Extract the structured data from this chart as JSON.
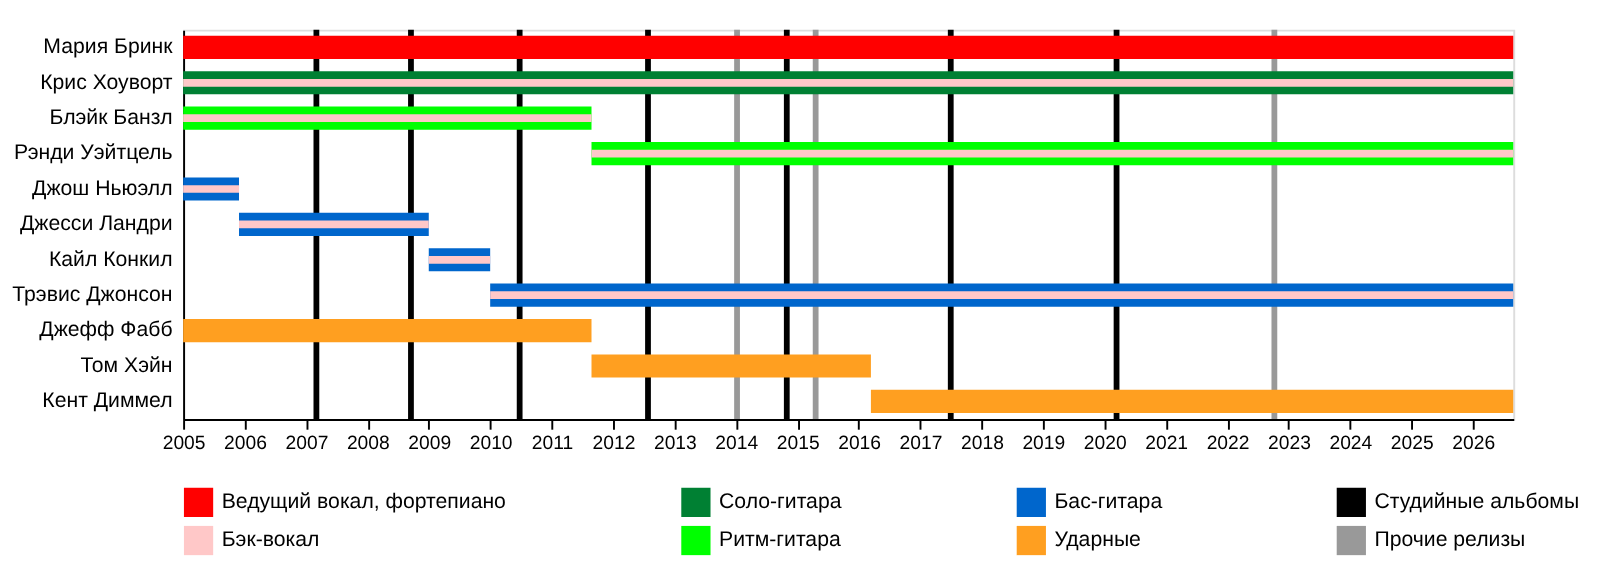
{
  "chart_data": {
    "type": "bar",
    "orientation": "horizontal",
    "categories": [
      "Мария Бринк",
      "Крис Хоуворт",
      "Блэйк Банзл",
      "Рэнди Уэйтцель",
      "Джош Ньюэлл",
      "Джесси Ландри",
      "Кайл Конкил",
      "Трэвис Джонсон",
      "Джефф Фабб",
      "Том Хэйн",
      "Кент Диммел"
    ],
    "series": [
      {
        "name": "Ведущий вокал, фортепиано",
        "color": "#ff0000",
        "base": [
          2005,
          null,
          null,
          null,
          null,
          null,
          null,
          null,
          null,
          null,
          null
        ],
        "values": [
          21.66,
          null,
          null,
          null,
          null,
          null,
          null,
          null,
          null,
          null,
          null
        ]
      },
      {
        "name": "Бэк-вокал",
        "color": "#ffc8c8",
        "base": [
          null,
          2005,
          2005,
          2011.65,
          2005,
          2005.91,
          2009,
          2010,
          null,
          null,
          null
        ],
        "values": [
          null,
          21.66,
          6.65,
          15.01,
          0.91,
          3.09,
          1.0,
          16.66,
          null,
          null,
          null
        ]
      },
      {
        "name": "Соло-гитара",
        "color": "#008033",
        "base": [
          null,
          2005,
          null,
          null,
          null,
          null,
          null,
          null,
          null,
          null,
          null
        ],
        "values": [
          null,
          21.66,
          null,
          null,
          null,
          null,
          null,
          null,
          null,
          null,
          null
        ]
      },
      {
        "name": "Ритм-гитара",
        "color": "#00ff00",
        "base": [
          null,
          null,
          2005,
          2011.65,
          null,
          null,
          null,
          null,
          null,
          null,
          null
        ],
        "values": [
          null,
          null,
          6.65,
          15.01,
          null,
          null,
          null,
          null,
          null,
          null,
          null
        ]
      },
      {
        "name": "Бас-гитара",
        "color": "#0066cc",
        "base": [
          null,
          null,
          null,
          null,
          2005,
          2005.91,
          2009,
          2010,
          null,
          null,
          null
        ],
        "values": [
          null,
          null,
          null,
          null,
          0.91,
          3.09,
          1.0,
          16.66,
          null,
          null,
          null
        ]
      },
      {
        "name": "Ударные",
        "color": "#ff9f20",
        "base": [
          null,
          null,
          null,
          null,
          null,
          null,
          null,
          null,
          2005,
          2011.65,
          2016.2
        ],
        "values": [
          null,
          null,
          null,
          null,
          null,
          null,
          null,
          null,
          6.65,
          4.55,
          10.46
        ]
      }
    ],
    "ref_lines": [
      {
        "axis": "x",
        "value": 2007.17,
        "label": "Студийные альбомы",
        "color": "#000000"
      },
      {
        "axis": "x",
        "value": 2008.71,
        "color": "#000000"
      },
      {
        "axis": "x",
        "value": 2010.48,
        "color": "#000000"
      },
      {
        "axis": "x",
        "value": 2012.57,
        "color": "#000000"
      },
      {
        "axis": "x",
        "value": 2014.83,
        "color": "#000000"
      },
      {
        "axis": "x",
        "value": 2017.5,
        "color": "#000000"
      },
      {
        "axis": "x",
        "value": 2020.2,
        "color": "#000000"
      },
      {
        "axis": "x",
        "value": 2014.02,
        "label": "Прочие релизы",
        "color": "#999999"
      },
      {
        "axis": "x",
        "value": 2015.3,
        "color": "#999999"
      },
      {
        "axis": "x",
        "value": 2022.77,
        "color": "#999999"
      }
    ],
    "xlim": [
      2005,
      2026.66
    ],
    "xticks": [
      2005,
      2006,
      2007,
      2008,
      2009,
      2010,
      2011,
      2012,
      2013,
      2014,
      2015,
      2016,
      2017,
      2018,
      2019,
      2020,
      2021,
      2022,
      2023,
      2024,
      2025,
      2026
    ],
    "grid": false,
    "legend": "bottom"
  }
}
